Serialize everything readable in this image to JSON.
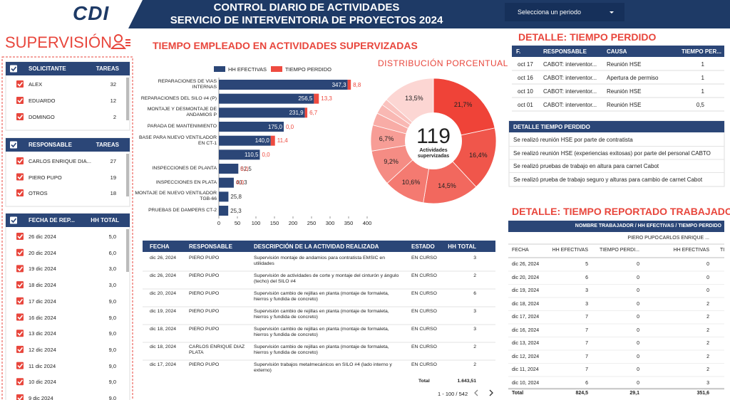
{
  "header": {
    "logo": "CDI",
    "title_line1": "CONTROL DIARIO DE ACTIVIDADES",
    "title_line2": "SERVICIO DE INTERVENTORIA DE PROYECTOS 2024",
    "period_selector": "Selecciona un periodo"
  },
  "supervision": {
    "title": "SUPERVISIÓN",
    "filters": [
      {
        "columns": [
          "SOLICITANTE",
          "TAREAS"
        ],
        "rows": [
          [
            "ALEX",
            32
          ],
          [
            "EDUARDO",
            12
          ],
          [
            "DOMINGO",
            2
          ]
        ]
      },
      {
        "columns": [
          "RESPONSABLE",
          "TAREAS"
        ],
        "rows": [
          [
            "CARLOS ENRIQUE DIA...",
            27
          ],
          [
            "PIERO PUPO",
            19
          ],
          [
            "OTROS",
            18
          ]
        ]
      },
      {
        "columns": [
          "FECHA DE REP...",
          "HH TOTAL"
        ],
        "rows": [
          [
            "26 dic 2024",
            "5,0"
          ],
          [
            "20 dic 2024",
            "6,0"
          ],
          [
            "19 dic 2024",
            "3,0"
          ],
          [
            "18 dic 2024",
            "3,0"
          ],
          [
            "17 dic 2024",
            "9,0"
          ],
          [
            "16 dic 2024",
            "9,0"
          ],
          [
            "13 dic 2024",
            "9,0"
          ],
          [
            "12 dic 2024",
            "9,0"
          ],
          [
            "11 dic 2024",
            "9,0"
          ],
          [
            "10 dic 2024",
            "9,0"
          ],
          [
            "9 dic 2024",
            "9,0"
          ]
        ]
      }
    ]
  },
  "chart_data": [
    {
      "type": "bar",
      "orientation": "horizontal",
      "stacked": true,
      "title": "TIEMPO EMPLEADO EN ACTIVIDADES SUPERVIZADAS",
      "categories": [
        "REPARACIONES DE VIAS INTERNAS",
        "REPARACIONES DEL SILO #4 (P)",
        "MONTAJE Y DESMONTAJE DE ANDAMIOS P",
        "PARADA DE MANTENIMIENTO",
        "BASE PARA NUEVO VENTILADOR EN CT-1",
        null,
        "INSPECCIONES DE PLANTA",
        "INSPECCIONES EN PLATA",
        "MONTAJE DE NUEVO VENTILADOR TGB-66",
        "PRUEBAS DE DAMPERS CT-2"
      ],
      "series": [
        {
          "name": "HH EFECTIVAS",
          "color": "#2b4677",
          "values": [
            347.3,
            256.5,
            231.9,
            175.0,
            140.0,
            110.5,
            52.5,
            40.3,
            25.8,
            25.3
          ],
          "value_labels": [
            "347,3",
            "256,5",
            "231,9",
            "175,0",
            "140,0",
            "110,5",
            "52,5",
            "40,3",
            "25,8",
            "25,3"
          ]
        },
        {
          "name": "TIEMPO PERDIDO",
          "color": "#ee4b40",
          "values": [
            8.8,
            13.3,
            6.7,
            0,
            11.4,
            0,
            0,
            0,
            0,
            0
          ],
          "value_labels": [
            "8,8",
            "13,3",
            "6,7",
            "0,0",
            "11,4",
            "0,0",
            "0,0",
            "0,0",
            null,
            null
          ]
        }
      ],
      "xlim": [
        0,
        400
      ],
      "xticks": [
        0,
        50,
        100,
        150,
        200,
        250,
        300,
        350,
        400
      ]
    },
    {
      "type": "pie",
      "title": "DISTRIBUCIÓN PORCENTUAL",
      "center_value": 119,
      "center_label": "Actividades supervizadas",
      "values": [
        21.7,
        16.4,
        14.5,
        10.6,
        9.2,
        6.7,
        3.2,
        2.5,
        1.7,
        13.5
      ],
      "value_labels": [
        "21,7%",
        "16,4%",
        "14,5%",
        "10,6%",
        "9,2%",
        "6,7%",
        null,
        null,
        null,
        "13,5%"
      ],
      "colors": [
        "#ef4338",
        "#f0564b",
        "#f2685e",
        "#f47a71",
        "#f58c84",
        "#f79d96",
        "#f8aca6",
        "#f9b8b3",
        "#fac3bf",
        "#fcd6d3"
      ]
    }
  ],
  "activities_table": {
    "columns": [
      "FECHA",
      "RESPONSABLE",
      "DESCRIPCIÓN DE LA ACTIVIDAD REALIZADA",
      "ESTADO",
      "HH TOTAL"
    ],
    "rows": [
      [
        "dic 26, 2024",
        "PIERO PUPO",
        "Supervisión montaje de andamios para contratista EMSIC en utilidades",
        "EN CURSO",
        3
      ],
      [
        "dic 26, 2024",
        "PIERO PUPO",
        "Supervisión de actividades de corte y montaje del cinturón y ángulo (techo) del SILO #4",
        "EN CURSO",
        2
      ],
      [
        "dic 20, 2024",
        "PIERO PUPO",
        "Supervisión cambio de rejillas en planta (montaje de formaleta, hierros y fundida de concreto)",
        "EN CURSO",
        6
      ],
      [
        "dic 19, 2024",
        "PIERO PUPO",
        "Supervisión cambio de rejillas en planta (montaje de formaleta, hierros y fundida de concreto)",
        "EN CURSO",
        3
      ],
      [
        "dic 18, 2024",
        "PIERO PUPO",
        "Supervisión cambio de rejillas en planta (montaje de formaleta, hierros y fundida de concreto)",
        "EN CURSO",
        3
      ],
      [
        "dic 18, 2024",
        "CARLOS ENRIQUE DIAZ PLATA",
        "Supervisión cambio de rejillas en planta (montaje de formaleta, hierros y fundida de concreto)",
        "EN CURSO",
        2
      ],
      [
        "dic 17, 2024",
        "PIERO PUPO",
        "Supervisión trabajos metalmecánicos en SILO #4 (lado interno y externo)",
        "EN CURSO",
        2
      ]
    ],
    "total_label": "Total",
    "total_value": "1.643,51",
    "pagination": "1 - 100 / 542"
  },
  "lost_time_detail": {
    "title": "DETALLE: TIEMPO PERDIDO",
    "columns": [
      "F.",
      "RESPONSABLE",
      "CAUSA",
      "TIEMPO PER..."
    ],
    "rows": [
      [
        "oct 17",
        "CABOT: interventor...",
        "Reunión HSE",
        1
      ],
      [
        "oct 16",
        "CABOT: interventor...",
        "Apertura de permiso",
        1
      ],
      [
        "oct 10",
        "CABOT: interventor...",
        "Reunión HSE",
        1
      ],
      [
        "oct 01",
        "CABOT: interventor...",
        "Reunión HSE",
        "0,5"
      ]
    ]
  },
  "lost_time_notes": {
    "title": "DETALLE TIEMPO PERDIDO",
    "items": [
      "Se realizó reunión HSE por parte de contratista",
      "Se realizó reunión HSE (experiencias exitosas) por parte del personal CABTO",
      "Se realizó pruebas de trabajo en altura para carnet Cabot",
      "Se realizó prueba de trabajo seguro y alturas para cambio de carnet Cabot"
    ]
  },
  "worker_report": {
    "title": "DETALLE: TIEMPO REPORTADO TRABAJADOR",
    "header": "NOMBRE TRABAJADOR / HH EFECTIVAS / TIEMPO PERDIDO",
    "workers": [
      "PIERO PUPO",
      "CARLOS ENRIQUE ..."
    ],
    "columns": [
      "FECHA",
      "HH EFECTIVAS",
      "TIEMPO PERDI...",
      "HH EFECTIVAS",
      "TI"
    ],
    "rows": [
      [
        "dic 26, 2024",
        5,
        0,
        0
      ],
      [
        "dic 20, 2024",
        6,
        0,
        0
      ],
      [
        "dic 19, 2024",
        3,
        0,
        0
      ],
      [
        "dic 18, 2024",
        3,
        0,
        2
      ],
      [
        "dic 17, 2024",
        7,
        0,
        2
      ],
      [
        "dic 16, 2024",
        7,
        0,
        2
      ],
      [
        "dic 13, 2024",
        7,
        0,
        2
      ],
      [
        "dic 12, 2024",
        7,
        0,
        2
      ],
      [
        "dic 11, 2024",
        7,
        0,
        2
      ],
      [
        "dic 10, 2024",
        6,
        0,
        3
      ]
    ],
    "total": [
      "Total",
      "824,5",
      "29,1",
      "351,6"
    ]
  }
}
